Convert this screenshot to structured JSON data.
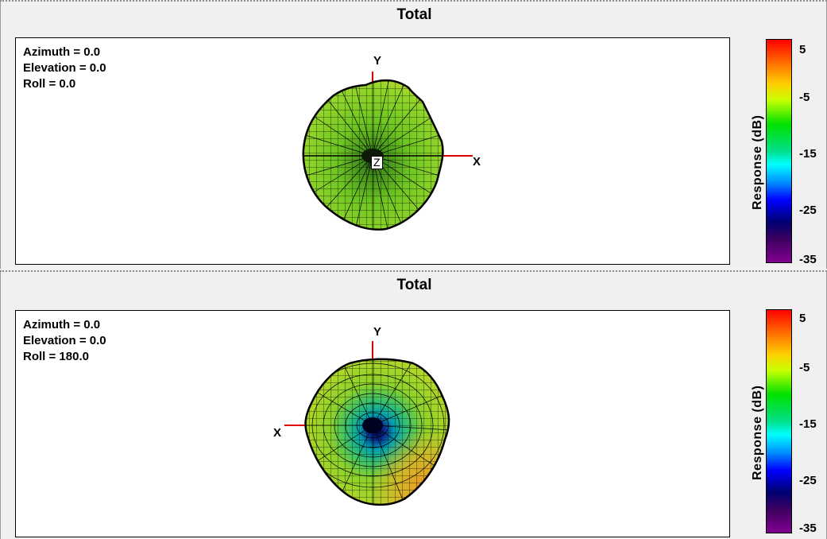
{
  "panels": [
    {
      "title": "Total",
      "orientation": {
        "azimuth": "Azimuth = 0.0",
        "elevation": "Elevation = 0.0",
        "roll": "Roll = 0.0"
      },
      "axes": {
        "y": "Y",
        "x": "X",
        "z": "Z"
      },
      "colorbar": {
        "title": "Response  (dB)",
        "ticks": [
          "5",
          "-5",
          "-15",
          "-25",
          "-35"
        ]
      }
    },
    {
      "title": "Total",
      "orientation": {
        "azimuth": "Azimuth = 0.0",
        "elevation": "Elevation = 0.0",
        "roll": "Roll = 180.0"
      },
      "axes": {
        "y": "Y",
        "x": "X"
      },
      "colorbar": {
        "title": "Response  (dB)",
        "ticks": [
          "5",
          "-5",
          "-15",
          "-25",
          "-35"
        ]
      }
    }
  ],
  "colors": {
    "axis_line": "#e00000",
    "mesh_line": "#000000",
    "mesh_fill_dominant": "#7ed321"
  }
}
